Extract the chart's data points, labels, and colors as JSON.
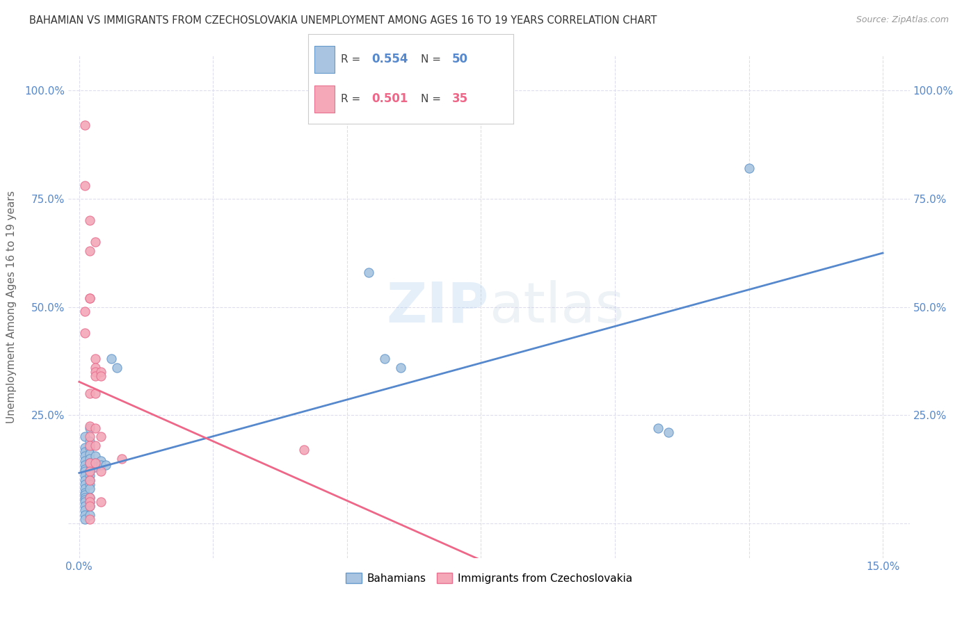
{
  "title": "BAHAMIAN VS IMMIGRANTS FROM CZECHOSLOVAKIA UNEMPLOYMENT AMONG AGES 16 TO 19 YEARS CORRELATION CHART",
  "source": "Source: ZipAtlas.com",
  "ylabel": "Unemployment Among Ages 16 to 19 years",
  "xlim": [
    -0.002,
    0.155
  ],
  "ylim": [
    -0.08,
    1.08
  ],
  "xtick_positions": [
    0.0,
    0.025,
    0.05,
    0.075,
    0.1,
    0.125,
    0.15
  ],
  "xticklabels_show": {
    "0.0": "0.0%",
    "0.15": "15.0%"
  },
  "ytick_positions": [
    0.0,
    0.25,
    0.5,
    0.75,
    1.0
  ],
  "yticklabels": [
    "",
    "25.0%",
    "50.0%",
    "75.0%",
    "100.0%"
  ],
  "watermark": "ZIPatlas",
  "blue_R": "0.554",
  "blue_N": "50",
  "pink_R": "0.501",
  "pink_N": "35",
  "blue_color": "#A8C4E0",
  "pink_color": "#F4A8B8",
  "blue_edge_color": "#6699CC",
  "pink_edge_color": "#E87090",
  "blue_line_color": "#5588CC",
  "pink_line_color": "#EE6688",
  "blue_scatter": [
    [
      0.001,
      0.2
    ],
    [
      0.001,
      0.175
    ],
    [
      0.001,
      0.165
    ],
    [
      0.001,
      0.155
    ],
    [
      0.001,
      0.145
    ],
    [
      0.001,
      0.135
    ],
    [
      0.001,
      0.125
    ],
    [
      0.001,
      0.12
    ],
    [
      0.001,
      0.11
    ],
    [
      0.001,
      0.1
    ],
    [
      0.001,
      0.09
    ],
    [
      0.001,
      0.08
    ],
    [
      0.001,
      0.07
    ],
    [
      0.001,
      0.065
    ],
    [
      0.001,
      0.06
    ],
    [
      0.001,
      0.055
    ],
    [
      0.001,
      0.05
    ],
    [
      0.001,
      0.04
    ],
    [
      0.001,
      0.03
    ],
    [
      0.001,
      0.02
    ],
    [
      0.001,
      0.01
    ],
    [
      0.002,
      0.22
    ],
    [
      0.002,
      0.19
    ],
    [
      0.002,
      0.175
    ],
    [
      0.002,
      0.16
    ],
    [
      0.002,
      0.15
    ],
    [
      0.002,
      0.14
    ],
    [
      0.002,
      0.12
    ],
    [
      0.002,
      0.11
    ],
    [
      0.002,
      0.1
    ],
    [
      0.002,
      0.09
    ],
    [
      0.002,
      0.08
    ],
    [
      0.002,
      0.06
    ],
    [
      0.002,
      0.05
    ],
    [
      0.002,
      0.04
    ],
    [
      0.002,
      0.02
    ],
    [
      0.003,
      0.155
    ],
    [
      0.003,
      0.14
    ],
    [
      0.003,
      0.13
    ],
    [
      0.004,
      0.145
    ],
    [
      0.004,
      0.135
    ],
    [
      0.005,
      0.135
    ],
    [
      0.006,
      0.38
    ],
    [
      0.007,
      0.36
    ],
    [
      0.054,
      0.58
    ],
    [
      0.057,
      0.38
    ],
    [
      0.06,
      0.36
    ],
    [
      0.108,
      0.22
    ],
    [
      0.11,
      0.21
    ],
    [
      0.125,
      0.82
    ]
  ],
  "pink_scatter": [
    [
      0.001,
      0.92
    ],
    [
      0.001,
      0.78
    ],
    [
      0.001,
      0.49
    ],
    [
      0.001,
      0.44
    ],
    [
      0.002,
      0.7
    ],
    [
      0.002,
      0.63
    ],
    [
      0.002,
      0.52
    ],
    [
      0.002,
      0.52
    ],
    [
      0.002,
      0.3
    ],
    [
      0.002,
      0.225
    ],
    [
      0.002,
      0.2
    ],
    [
      0.002,
      0.18
    ],
    [
      0.002,
      0.14
    ],
    [
      0.002,
      0.12
    ],
    [
      0.002,
      0.1
    ],
    [
      0.002,
      0.06
    ],
    [
      0.002,
      0.05
    ],
    [
      0.002,
      0.04
    ],
    [
      0.002,
      0.01
    ],
    [
      0.003,
      0.65
    ],
    [
      0.003,
      0.38
    ],
    [
      0.003,
      0.36
    ],
    [
      0.003,
      0.35
    ],
    [
      0.003,
      0.34
    ],
    [
      0.003,
      0.3
    ],
    [
      0.003,
      0.22
    ],
    [
      0.003,
      0.18
    ],
    [
      0.003,
      0.14
    ],
    [
      0.004,
      0.35
    ],
    [
      0.004,
      0.34
    ],
    [
      0.004,
      0.2
    ],
    [
      0.004,
      0.12
    ],
    [
      0.004,
      0.05
    ],
    [
      0.042,
      0.17
    ],
    [
      0.008,
      0.15
    ]
  ],
  "background_color": "#FFFFFF",
  "grid_color": "#DDDDEE",
  "figsize": [
    14.06,
    8.92
  ],
  "dpi": 100
}
